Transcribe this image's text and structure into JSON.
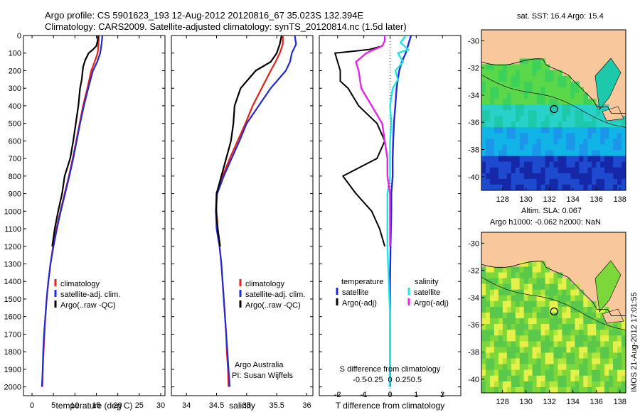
{
  "header": {
    "line1": "Argo profile: CS 5901623_193 12-Aug-2012 20120816_67 35.023S 132.394E",
    "line2": "Climatology: CARS2009. Satellite-adjusted climatology: synTS_20120814.nc (1.5d later)"
  },
  "colors": {
    "climatology": "#e8201a",
    "satellite": "#1f2bd6",
    "argo": "#000000",
    "sat_s": "#1ee6e6",
    "argo_s": "#e626e6",
    "land": "#f8c89c"
  },
  "chart_data": [
    {
      "id": "temperature",
      "type": "line",
      "xlabel": "temperature (deg C)",
      "ylabel": "",
      "xlim": [
        -2,
        31
      ],
      "ylim": [
        0,
        2050
      ],
      "y_inverted": true,
      "xticks": [
        0,
        5,
        10,
        15,
        20,
        25,
        30
      ],
      "yticks": [
        0,
        100,
        200,
        300,
        400,
        500,
        600,
        700,
        800,
        900,
        1000,
        1100,
        1200,
        1300,
        1400,
        1500,
        1600,
        1700,
        1800,
        1900,
        2000
      ],
      "legend": [
        "climatology",
        "satellite-adj. clim.",
        "Argo(..raw -QC)"
      ],
      "legend_position": "lower-center",
      "series": [
        {
          "name": "climatology",
          "color_key": "climatology",
          "points": [
            [
              15.6,
              0
            ],
            [
              15.5,
              50
            ],
            [
              15.3,
              100
            ],
            [
              14.6,
              150
            ],
            [
              13.8,
              200
            ],
            [
              12.9,
              300
            ],
            [
              11.9,
              400
            ],
            [
              11.1,
              500
            ],
            [
              10.3,
              600
            ],
            [
              9.5,
              700
            ],
            [
              8.6,
              800
            ],
            [
              7.6,
              900
            ],
            [
              6.6,
              1000
            ],
            [
              5.7,
              1100
            ],
            [
              4.9,
              1200
            ],
            [
              4.3,
              1300
            ],
            [
              3.8,
              1400
            ],
            [
              3.4,
              1500
            ],
            [
              3.1,
              1600
            ],
            [
              2.9,
              1700
            ],
            [
              2.7,
              1800
            ],
            [
              2.5,
              1900
            ],
            [
              2.4,
              2000
            ]
          ]
        },
        {
          "name": "satellite-adj. clim.",
          "color_key": "satellite",
          "points": [
            [
              16.4,
              0
            ],
            [
              16.2,
              50
            ],
            [
              15.9,
              100
            ],
            [
              15.2,
              150
            ],
            [
              14.2,
              200
            ],
            [
              13.1,
              300
            ],
            [
              12.1,
              400
            ],
            [
              11.2,
              500
            ],
            [
              10.4,
              600
            ],
            [
              9.6,
              700
            ],
            [
              8.7,
              800
            ],
            [
              7.7,
              900
            ],
            [
              6.7,
              1000
            ],
            [
              5.8,
              1100
            ],
            [
              5.0,
              1200
            ],
            [
              4.3,
              1300
            ],
            [
              3.8,
              1400
            ],
            [
              3.4,
              1500
            ],
            [
              3.1,
              1600
            ],
            [
              2.8,
              1700
            ],
            [
              2.6,
              1800
            ],
            [
              2.5,
              1900
            ],
            [
              2.3,
              2000
            ]
          ]
        },
        {
          "name": "Argo(..raw -QC)",
          "color_key": "argo",
          "points": [
            [
              15.4,
              0
            ],
            [
              15.3,
              30
            ],
            [
              15.0,
              60
            ],
            [
              14.2,
              80
            ],
            [
              13.2,
              100
            ],
            [
              12.4,
              140
            ],
            [
              11.9,
              180
            ],
            [
              11.6,
              250
            ],
            [
              11.2,
              300
            ],
            [
              10.8,
              400
            ],
            [
              10.2,
              500
            ],
            [
              9.6,
              600
            ],
            [
              8.9,
              700
            ],
            [
              7.6,
              800
            ],
            [
              7.0,
              900
            ],
            [
              6.1,
              1000
            ],
            [
              5.3,
              1100
            ],
            [
              4.7,
              1200
            ]
          ]
        }
      ]
    },
    {
      "id": "salinity",
      "type": "line",
      "xlabel": "salinity",
      "ylabel": "",
      "xlim": [
        33.75,
        36.1
      ],
      "ylim": [
        0,
        2050
      ],
      "y_inverted": true,
      "xticks": [
        34,
        34.5,
        35,
        35.5,
        36
      ],
      "legend": [
        "climatology",
        "satellite-adj. clim.",
        "Argo(..raw -QC)"
      ],
      "legend_position": "lower-center",
      "annotations": [
        "Argo Australia",
        "PI: Susan Wijffels"
      ],
      "series": [
        {
          "name": "climatology",
          "color_key": "climatology",
          "points": [
            [
              35.6,
              0
            ],
            [
              35.6,
              50
            ],
            [
              35.55,
              100
            ],
            [
              35.48,
              150
            ],
            [
              35.4,
              200
            ],
            [
              35.25,
              300
            ],
            [
              35.1,
              400
            ],
            [
              34.98,
              500
            ],
            [
              34.85,
              600
            ],
            [
              34.72,
              700
            ],
            [
              34.6,
              800
            ],
            [
              34.5,
              900
            ],
            [
              34.5,
              1000
            ],
            [
              34.52,
              1100
            ],
            [
              34.55,
              1200
            ],
            [
              34.58,
              1300
            ],
            [
              34.6,
              1400
            ],
            [
              34.62,
              1500
            ],
            [
              34.64,
              1600
            ],
            [
              34.66,
              1700
            ],
            [
              34.67,
              1800
            ],
            [
              34.69,
              1900
            ],
            [
              34.7,
              2000
            ]
          ]
        },
        {
          "name": "satellite-adj. clim.",
          "color_key": "satellite",
          "points": [
            [
              35.8,
              0
            ],
            [
              35.82,
              50
            ],
            [
              35.75,
              100
            ],
            [
              35.72,
              150
            ],
            [
              35.65,
              200
            ],
            [
              35.4,
              300
            ],
            [
              35.2,
              400
            ],
            [
              35.0,
              500
            ],
            [
              34.88,
              600
            ],
            [
              34.75,
              700
            ],
            [
              34.62,
              800
            ],
            [
              34.51,
              900
            ],
            [
              34.49,
              1000
            ],
            [
              34.5,
              1100
            ],
            [
              34.55,
              1200
            ],
            [
              34.58,
              1300
            ],
            [
              34.6,
              1400
            ],
            [
              34.62,
              1500
            ],
            [
              34.64,
              1600
            ],
            [
              34.66,
              1700
            ],
            [
              34.68,
              1800
            ],
            [
              34.7,
              1900
            ],
            [
              34.72,
              2000
            ]
          ]
        },
        {
          "name": "Argo(..raw -QC)",
          "color_key": "argo",
          "points": [
            [
              35.58,
              0
            ],
            [
              35.55,
              50
            ],
            [
              35.5,
              100
            ],
            [
              35.4,
              150
            ],
            [
              35.15,
              200
            ],
            [
              34.9,
              300
            ],
            [
              34.8,
              400
            ],
            [
              34.78,
              500
            ],
            [
              34.74,
              600
            ],
            [
              34.66,
              700
            ],
            [
              34.58,
              800
            ],
            [
              34.5,
              900
            ],
            [
              34.49,
              1000
            ],
            [
              34.52,
              1100
            ],
            [
              34.56,
              1200
            ]
          ]
        }
      ]
    },
    {
      "id": "difference",
      "type": "line",
      "xlabel": "T difference from climatology",
      "x2label": "S difference from climatology",
      "ylabel": "",
      "xlim": [
        -2.7,
        2.7
      ],
      "ylim": [
        0,
        2050
      ],
      "y_inverted": true,
      "xticks": [
        -2,
        -1,
        0,
        1,
        2
      ],
      "x2ticks": [
        "-0.5",
        "-0.25",
        "0",
        "0.25",
        "0.5"
      ],
      "legend_headers": [
        "temperature",
        "salinity"
      ],
      "legend": [
        "satellite",
        "Argo(-adj)",
        "satellite",
        "Argo(-adj)"
      ],
      "legend_position": "lower-center",
      "series": [
        {
          "name": "T satellite",
          "color_key": "satellite",
          "points": [
            [
              0.8,
              0
            ],
            [
              0.7,
              50
            ],
            [
              0.6,
              100
            ],
            [
              0.45,
              150
            ],
            [
              0.35,
              200
            ],
            [
              0.25,
              300
            ],
            [
              0.2,
              400
            ],
            [
              0.15,
              500
            ],
            [
              0.12,
              600
            ],
            [
              0.1,
              700
            ],
            [
              0.1,
              800
            ],
            [
              0.05,
              900
            ],
            [
              0.05,
              1000
            ],
            [
              0.02,
              1200
            ],
            [
              0.0,
              1400
            ],
            [
              0.0,
              1600
            ],
            [
              0.0,
              1800
            ],
            [
              0.0,
              2000
            ]
          ]
        },
        {
          "name": "T Argo(-adj)",
          "color_key": "argo",
          "points": [
            [
              -0.2,
              0
            ],
            [
              -0.2,
              30
            ],
            [
              -0.3,
              60
            ],
            [
              -0.8,
              80
            ],
            [
              -2.1,
              100
            ],
            [
              -2.0,
              150
            ],
            [
              -1.9,
              200
            ],
            [
              -1.9,
              260
            ],
            [
              -1.6,
              300
            ],
            [
              -1.2,
              400
            ],
            [
              -0.5,
              500
            ],
            [
              -0.2,
              600
            ],
            [
              -0.5,
              700
            ],
            [
              -1.8,
              800
            ],
            [
              -1.3,
              900
            ],
            [
              -0.7,
              1000
            ],
            [
              -0.4,
              1100
            ],
            [
              -0.2,
              1200
            ]
          ]
        },
        {
          "name": "S satellite",
          "color_key": "sat_s",
          "points": [
            [
              0.6,
              0
            ],
            [
              0.4,
              40
            ],
            [
              0.7,
              80
            ],
            [
              0.3,
              100
            ],
            [
              0.5,
              150
            ],
            [
              0.2,
              200
            ],
            [
              0.3,
              250
            ],
            [
              0.1,
              300
            ],
            [
              0.0,
              400
            ],
            [
              0.05,
              500
            ],
            [
              0.0,
              600
            ],
            [
              0.0,
              700
            ],
            [
              0.0,
              800
            ],
            [
              -0.1,
              900
            ],
            [
              -0.1,
              1000
            ],
            [
              -0.1,
              1200
            ],
            [
              -0.05,
              1400
            ],
            [
              0.0,
              1600
            ],
            [
              0.0,
              1800
            ],
            [
              -0.02,
              2000
            ]
          ]
        },
        {
          "name": "S Argo(-adj)",
          "color_key": "argo_s",
          "points": [
            [
              -0.2,
              0
            ],
            [
              -0.2,
              30
            ],
            [
              -0.3,
              60
            ],
            [
              -0.9,
              100
            ],
            [
              -1.3,
              150
            ],
            [
              -1.2,
              200
            ],
            [
              -1.1,
              300
            ],
            [
              -0.7,
              400
            ],
            [
              -0.3,
              500
            ],
            [
              -0.2,
              600
            ],
            [
              -0.1,
              700
            ],
            [
              -0.1,
              800
            ],
            [
              0.0,
              900
            ],
            [
              0.0,
              1000
            ],
            [
              0.0,
              1100
            ],
            [
              0.0,
              1200
            ]
          ]
        }
      ]
    },
    {
      "id": "sst_map",
      "type": "heatmap",
      "title": "sat. SST: 16.4  Argo: 15.4",
      "xticks": [
        128,
        130,
        132,
        134,
        136,
        138
      ],
      "yticks": [
        -30,
        -32,
        -34,
        -36,
        -38,
        -40
      ],
      "xlim": [
        126.2,
        138.5
      ],
      "ylim": [
        -41.0,
        -29.2
      ],
      "argo_position": [
        132.394,
        -35.023
      ]
    },
    {
      "id": "sla_map",
      "type": "heatmap",
      "title_line1": "Altim. SLA: 0.067",
      "title_line2": "Argo h1000: -0.062 h2000: NaN",
      "xticks": [
        128,
        130,
        132,
        134,
        136,
        138
      ],
      "yticks": [
        -30,
        -32,
        -34,
        -36,
        -38,
        -40
      ],
      "xlim": [
        126.2,
        138.5
      ],
      "ylim": [
        -41.0,
        -29.2
      ],
      "argo_position": [
        132.394,
        -35.023
      ]
    }
  ],
  "side_stamp": "IMOS 21-Aug-2012 17:01:55"
}
